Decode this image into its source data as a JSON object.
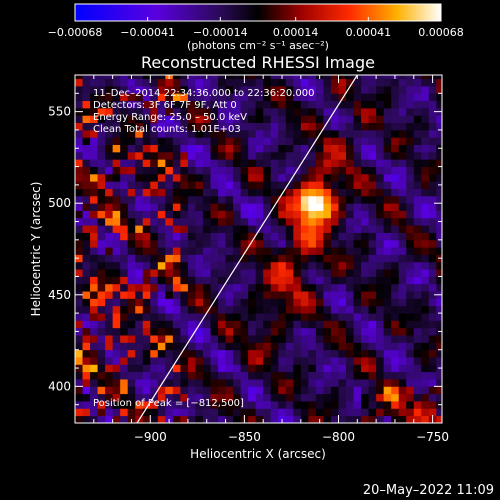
{
  "chart_data": {
    "type": "heatmap",
    "title": "Reconstructed RHESSI Image",
    "xlabel": "Heliocentric X (arcsec)",
    "ylabel": "Heliocentric Y (arcsec)",
    "xlim": [
      -940,
      -745
    ],
    "ylim": [
      380,
      570
    ],
    "x_ticks": [
      -900,
      -850,
      -800,
      -750
    ],
    "x_tick_labels": [
      "−900",
      "−850",
      "−800",
      "−750"
    ],
    "y_ticks": [
      400,
      450,
      500,
      550
    ],
    "y_tick_labels": [
      "400",
      "450",
      "500",
      "550"
    ],
    "colorbar": {
      "min": -0.00068,
      "max": 0.00068,
      "ticks": [
        -0.00068,
        -0.00041,
        -0.00014,
        0.00014,
        0.00041,
        0.00068
      ],
      "tick_labels": [
        "−0.00068",
        "−0.00041",
        "−0.00014",
        "0.00014",
        "0.00041",
        "0.00068"
      ],
      "unit_label": "(photons cm⁻² s⁻¹ asec⁻²)",
      "colors": [
        "#0000ff",
        "#6a00d8",
        "#4b1a8c",
        "#000000",
        "#b31010",
        "#ff3a00",
        "#ffb400",
        "#ffffff"
      ]
    },
    "info_lines": [
      "11–Dec–2014 22:34:36.000 to 22:36:20.000",
      "Detectors: 3F 6F 7F 9F, Att 0",
      "Energy Range: 25.0 – 50.0 keV",
      "Clean     Total counts: 1.01E+03"
    ],
    "peak_text": "Position of Peak = [−812,500]",
    "peak": {
      "x": -812,
      "y": 500
    },
    "limb_line": {
      "x": [
        -907,
        -790
      ],
      "y": [
        380,
        570
      ]
    }
  },
  "footer_date": "20–May–2022 11:09"
}
